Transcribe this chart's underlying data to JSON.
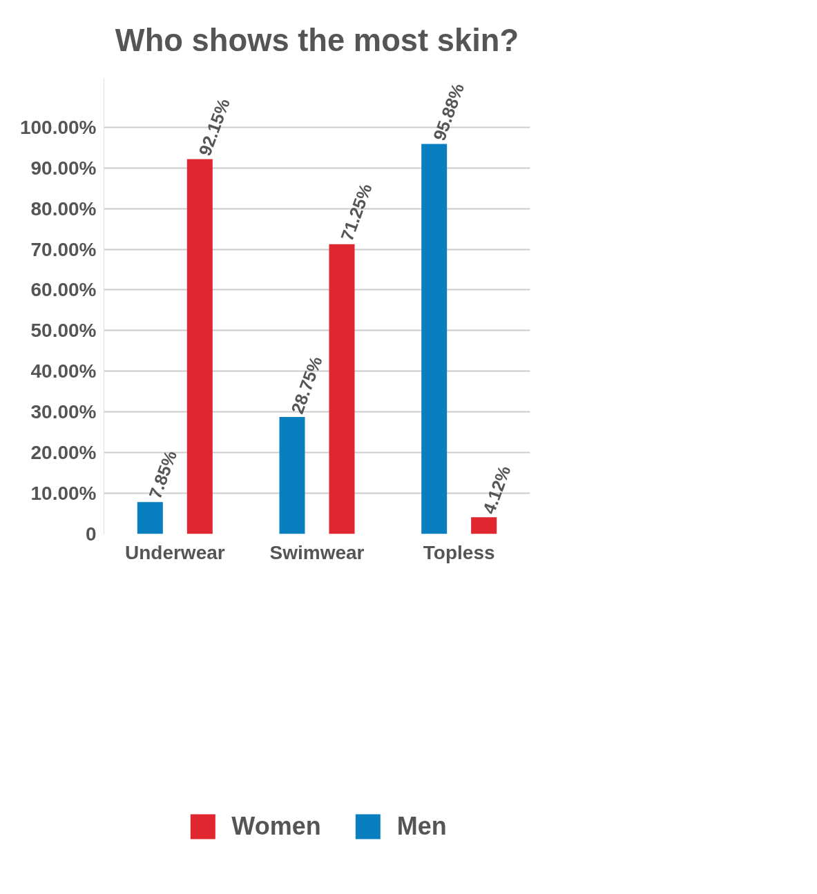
{
  "chart_data": {
    "type": "bar",
    "title": "Who shows the most skin?",
    "categories": [
      "Underwear",
      "Swimwear",
      "Topless"
    ],
    "series": [
      {
        "name": "Men",
        "color": "#0a7fc0",
        "values": [
          7.85,
          28.75,
          95.88
        ],
        "value_labels": [
          "7.85%",
          "28.75%",
          "95.88%"
        ]
      },
      {
        "name": "Women",
        "color": "#e0262e",
        "values": [
          92.15,
          71.25,
          4.12
        ],
        "value_labels": [
          "92.15%",
          "71.25%",
          "4.12%"
        ]
      }
    ],
    "ylim": [
      0,
      112
    ],
    "yticks": [
      {
        "value": 0,
        "label": "0"
      },
      {
        "value": 10,
        "label": "10.00%"
      },
      {
        "value": 20,
        "label": "20.00%"
      },
      {
        "value": 30,
        "label": "30.00%"
      },
      {
        "value": 40,
        "label": "40.00%"
      },
      {
        "value": 50,
        "label": "50.00%"
      },
      {
        "value": 60,
        "label": "60.00%"
      },
      {
        "value": 70,
        "label": "70.00%"
      },
      {
        "value": 80,
        "label": "80.00%"
      },
      {
        "value": 90,
        "label": "90.00%"
      },
      {
        "value": 100,
        "label": "100.00%"
      }
    ],
    "grid": "y",
    "legend": "bottom"
  }
}
